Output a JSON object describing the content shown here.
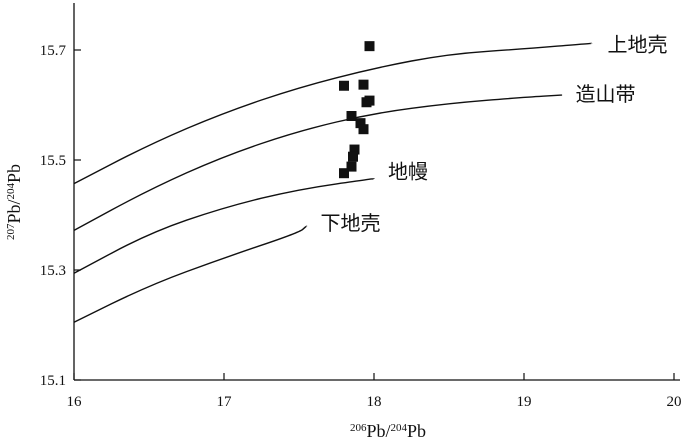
{
  "chart_data": {
    "type": "scatter",
    "title": "",
    "xlabel": {
      "pre1": "206",
      "mid1": "Pb/",
      "pre2": "204",
      "mid2": "Pb"
    },
    "ylabel": {
      "pre1": "207",
      "mid1": "Pb/",
      "pre2": "204",
      "mid2": "Pb"
    },
    "xlim": [
      16,
      20
    ],
    "ylim": [
      15.1,
      15.8
    ],
    "xticks": [
      16,
      17,
      18,
      19,
      20
    ],
    "xtick_labels": [
      "16",
      "17",
      "18",
      "19",
      "20"
    ],
    "yticks": [
      15.1,
      15.3,
      15.5,
      15.7
    ],
    "ytick_labels": [
      "15.1",
      "15.3",
      "15.5",
      "15.7"
    ],
    "curves": [
      {
        "name": "上地壳",
        "points": [
          [
            16.0,
            15.457
          ],
          [
            16.5,
            15.528
          ],
          [
            17.0,
            15.586
          ],
          [
            17.5,
            15.632
          ],
          [
            18.0,
            15.667
          ],
          [
            18.5,
            15.693
          ],
          [
            19.0,
            15.702
          ],
          [
            19.45,
            15.712
          ]
        ]
      },
      {
        "name": "造山带",
        "points": [
          [
            16.0,
            15.372
          ],
          [
            16.5,
            15.446
          ],
          [
            17.0,
            15.507
          ],
          [
            17.5,
            15.553
          ],
          [
            18.0,
            15.585
          ],
          [
            18.5,
            15.603
          ],
          [
            19.0,
            15.614
          ],
          [
            19.25,
            15.618
          ]
        ]
      },
      {
        "name": "地幔",
        "points": [
          [
            16.0,
            15.294
          ],
          [
            16.5,
            15.367
          ],
          [
            17.0,
            15.414
          ],
          [
            17.5,
            15.447
          ],
          [
            18.0,
            15.466
          ]
        ]
      },
      {
        "name": "下地壳",
        "points": [
          [
            16.0,
            15.205
          ],
          [
            16.5,
            15.272
          ],
          [
            17.0,
            15.322
          ],
          [
            17.5,
            15.368
          ],
          [
            17.55,
            15.38
          ]
        ]
      }
    ],
    "series": [
      {
        "name": "",
        "marker": "square",
        "points": [
          [
            17.97,
            15.707
          ],
          [
            17.8,
            15.635
          ],
          [
            17.93,
            15.637
          ],
          [
            17.95,
            15.605
          ],
          [
            17.97,
            15.608
          ],
          [
            17.85,
            15.58
          ],
          [
            17.91,
            15.567
          ],
          [
            17.93,
            15.556
          ],
          [
            17.87,
            15.519
          ],
          [
            17.86,
            15.506
          ],
          [
            17.85,
            15.488
          ],
          [
            17.8,
            15.476
          ]
        ]
      }
    ],
    "grid": false
  }
}
